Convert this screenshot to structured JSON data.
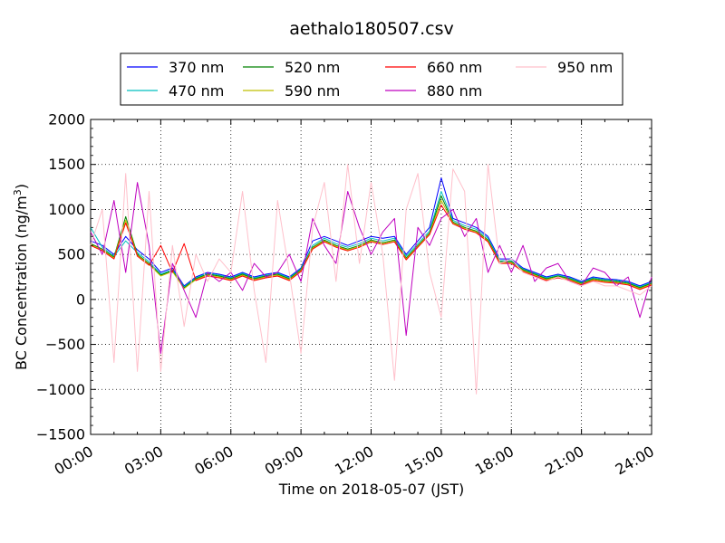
{
  "chart_data": {
    "type": "line",
    "title": "aethalo180507.csv",
    "xlabel": "Time on 2018-05-07 (JST)",
    "ylabel_main": "BC Concentration (ng/m",
    "ylabel_sup": "3",
    "ylabel_end": ")",
    "x_ticks": [
      "00:00",
      "03:00",
      "06:00",
      "09:00",
      "12:00",
      "15:00",
      "18:00",
      "21:00",
      "24:00"
    ],
    "x_tick_hours": [
      0,
      3,
      6,
      9,
      12,
      15,
      18,
      21,
      24
    ],
    "xlim_hours": [
      0,
      24
    ],
    "ylim": [
      -1500,
      2000
    ],
    "y_ticks": [
      -1500,
      -1000,
      -500,
      0,
      500,
      1000,
      1500,
      2000
    ],
    "y_tick_labels": [
      "−1500",
      "−1000",
      "−500",
      "0",
      "500",
      "1000",
      "1500",
      "2000"
    ],
    "grid": true,
    "legend_placement": "top, above plot",
    "x_hours": [
      0.0,
      0.5,
      1.0,
      1.5,
      2.0,
      2.5,
      3.0,
      3.5,
      4.0,
      4.5,
      5.0,
      5.5,
      6.0,
      6.5,
      7.0,
      7.5,
      8.0,
      8.5,
      9.0,
      9.5,
      10.0,
      10.5,
      11.0,
      11.5,
      12.0,
      12.5,
      13.0,
      13.5,
      14.0,
      14.5,
      15.0,
      15.5,
      16.0,
      16.5,
      17.0,
      17.5,
      18.0,
      18.5,
      19.0,
      19.5,
      20.0,
      20.5,
      21.0,
      21.5,
      22.0,
      22.5,
      23.0,
      23.5,
      24.0
    ],
    "series": [
      {
        "name": "370 nm",
        "color": "#0000ff",
        "values": [
          650,
          600,
          500,
          700,
          550,
          450,
          300,
          350,
          150,
          250,
          300,
          280,
          250,
          300,
          250,
          280,
          300,
          250,
          350,
          650,
          700,
          650,
          600,
          650,
          700,
          680,
          700,
          500,
          650,
          800,
          1350,
          900,
          850,
          800,
          700,
          450,
          450,
          350,
          300,
          250,
          280,
          250,
          200,
          250,
          230,
          220,
          200,
          150,
          200
        ]
      },
      {
        "name": "470 nm",
        "color": "#00bfbf",
        "values": [
          800,
          580,
          480,
          650,
          520,
          420,
          280,
          330,
          140,
          240,
          290,
          270,
          240,
          290,
          240,
          270,
          290,
          240,
          340,
          600,
          680,
          620,
          580,
          620,
          680,
          650,
          680,
          480,
          620,
          760,
          1200,
          880,
          820,
          780,
          680,
          430,
          430,
          340,
          290,
          240,
          270,
          240,
          190,
          240,
          220,
          210,
          190,
          140,
          190
        ]
      },
      {
        "name": "520 nm",
        "color": "#008000",
        "values": [
          620,
          560,
          470,
          920,
          500,
          400,
          270,
          320,
          130,
          230,
          280,
          260,
          230,
          280,
          230,
          260,
          280,
          230,
          330,
          580,
          660,
          600,
          560,
          600,
          660,
          630,
          660,
          460,
          600,
          740,
          1150,
          860,
          800,
          760,
          660,
          420,
          420,
          330,
          280,
          230,
          260,
          230,
          180,
          230,
          210,
          200,
          180,
          130,
          180
        ]
      },
      {
        "name": "590 nm",
        "color": "#bfbf00",
        "values": [
          610,
          550,
          460,
          880,
          490,
          390,
          260,
          310,
          120,
          220,
          270,
          250,
          220,
          270,
          220,
          250,
          270,
          220,
          320,
          570,
          650,
          590,
          550,
          590,
          650,
          620,
          650,
          450,
          590,
          730,
          1100,
          850,
          790,
          750,
          650,
          410,
          410,
          320,
          270,
          220,
          250,
          220,
          170,
          220,
          200,
          190,
          170,
          120,
          170
        ]
      },
      {
        "name": "660 nm",
        "color": "#ff0000",
        "values": [
          600,
          540,
          450,
          850,
          480,
          380,
          600,
          300,
          620,
          210,
          260,
          240,
          210,
          260,
          210,
          240,
          260,
          210,
          310,
          560,
          640,
          580,
          540,
          580,
          640,
          610,
          640,
          440,
          580,
          720,
          1050,
          840,
          780,
          740,
          640,
          400,
          400,
          310,
          260,
          210,
          240,
          210,
          160,
          210,
          190,
          180,
          160,
          110,
          160
        ]
      },
      {
        "name": "880 nm",
        "color": "#bf00bf",
        "values": [
          750,
          500,
          1100,
          300,
          1300,
          600,
          -600,
          400,
          100,
          -200,
          300,
          200,
          300,
          100,
          400,
          250,
          300,
          500,
          200,
          900,
          600,
          400,
          1200,
          800,
          500,
          750,
          900,
          -400,
          800,
          600,
          900,
          1000,
          700,
          900,
          300,
          600,
          300,
          600,
          200,
          350,
          400,
          200,
          150,
          350,
          300,
          150,
          250,
          -200,
          250
        ]
      },
      {
        "name": "950 nm",
        "color": "#ffc0cb",
        "values": [
          600,
          1000,
          -700,
          1400,
          -800,
          1200,
          -800,
          600,
          -300,
          500,
          200,
          450,
          300,
          1200,
          100,
          -700,
          1100,
          300,
          -600,
          800,
          1300,
          200,
          1500,
          400,
          1300,
          500,
          -900,
          1000,
          1400,
          300,
          -200,
          1450,
          1200,
          -1050,
          1500,
          400,
          450,
          300,
          250,
          200,
          250,
          200,
          150,
          200,
          150,
          150,
          100,
          50,
          150
        ]
      }
    ]
  }
}
